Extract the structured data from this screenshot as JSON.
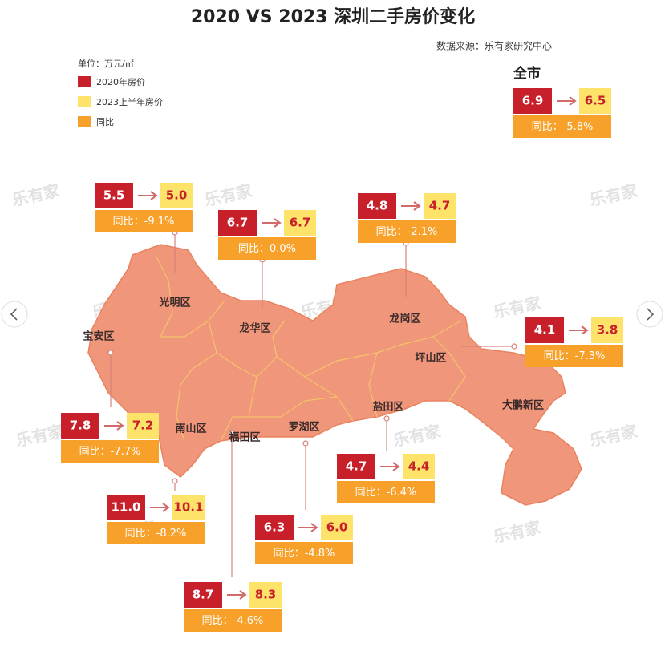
{
  "title": "2020 VS 2023 深圳二手房价变化",
  "source": "数据来源：乐有家研究中心",
  "legend": {
    "unit": "单位：万元/㎡",
    "items": [
      "2020年房价",
      "2023上半年房价",
      "同比"
    ]
  },
  "yoy_prefix": "同比：",
  "watermark": "乐有家",
  "city": {
    "name": "全市",
    "price_2020": "6.9",
    "price_2023": "6.5",
    "yoy": "-5.8%"
  },
  "districts": [
    {
      "name": "光明区",
      "price_2020": "5.5",
      "price_2023": "5.0",
      "yoy": "-9.1%"
    },
    {
      "name": "龙华区",
      "price_2020": "6.7",
      "price_2023": "6.7",
      "yoy": "0.0%"
    },
    {
      "name": "龙岗区",
      "price_2020": "4.8",
      "price_2023": "4.7",
      "yoy": "-2.1%"
    },
    {
      "name": "坪山区",
      "price_2020": "4.1",
      "price_2023": "3.8",
      "yoy": "-7.3%"
    },
    {
      "name": "宝安区",
      "price_2020": "7.8",
      "price_2023": "7.2",
      "yoy": "-7.7%"
    },
    {
      "name": "盐田区",
      "price_2020": "4.7",
      "price_2023": "4.4",
      "yoy": "-6.4%"
    },
    {
      "name": "南山区",
      "price_2020": "11.0",
      "price_2023": "10.1",
      "yoy": "-8.2%"
    },
    {
      "name": "罗湖区",
      "price_2020": "6.3",
      "price_2023": "6.0",
      "yoy": "-4.8%"
    },
    {
      "name": "福田区",
      "price_2020": "8.7",
      "price_2023": "8.3",
      "yoy": "-4.6%"
    },
    {
      "name": "大鹏新区"
    }
  ]
}
